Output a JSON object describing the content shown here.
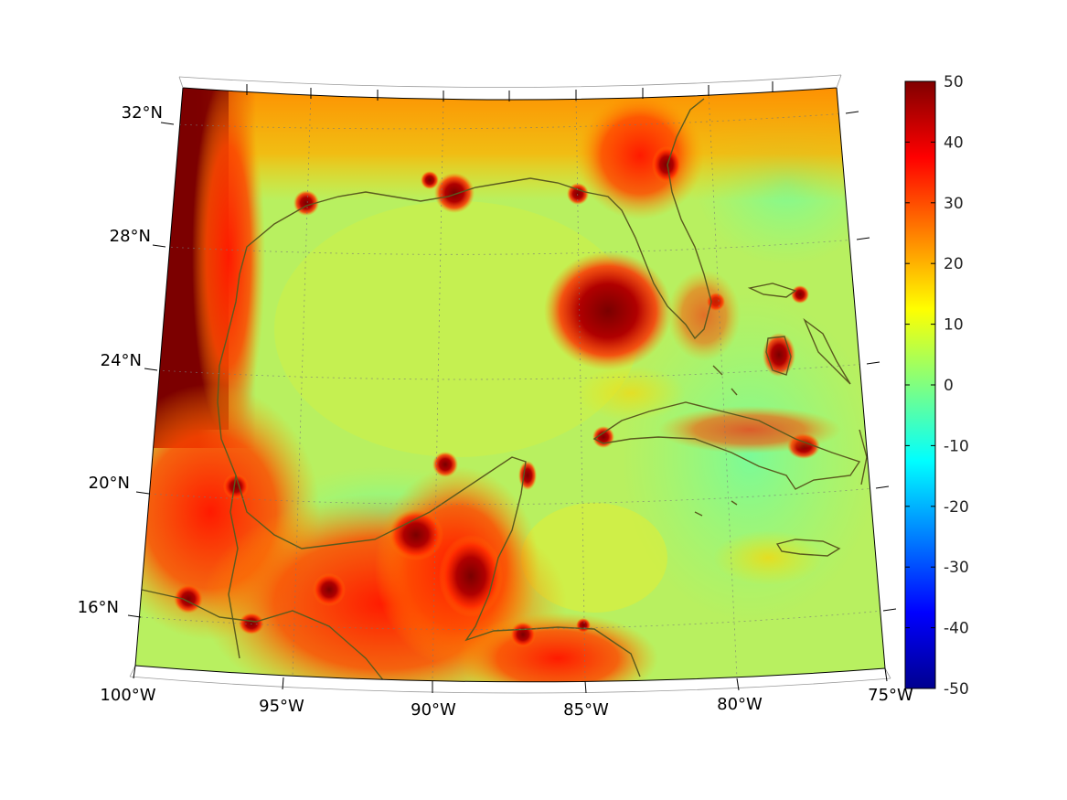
{
  "map": {
    "projection": "conic",
    "lon_range": [
      -100,
      -75
    ],
    "lat_range": [
      14,
      33
    ],
    "lon_ticks": [
      "100°W",
      "95°W",
      "90°W",
      "85°W",
      "80°W",
      "75°W"
    ],
    "lat_ticks": [
      "32°N",
      "28°N",
      "24°N",
      "20°N",
      "16°N"
    ],
    "grid": true,
    "coastlines": true,
    "coastline_color": "#5a5a1e",
    "field_description_colors": {
      "background_field": "#b8f060",
      "hot": "#7a0000",
      "warm": "#ff2a00",
      "mild": "#ffd200"
    }
  },
  "colorbar": {
    "colormap": "jet",
    "position": "right",
    "min": -50,
    "max": 50,
    "tick_labels": [
      "50",
      "40",
      "30",
      "20",
      "10",
      "0",
      "-10",
      "-20",
      "-30",
      "-40",
      "-50"
    ]
  }
}
